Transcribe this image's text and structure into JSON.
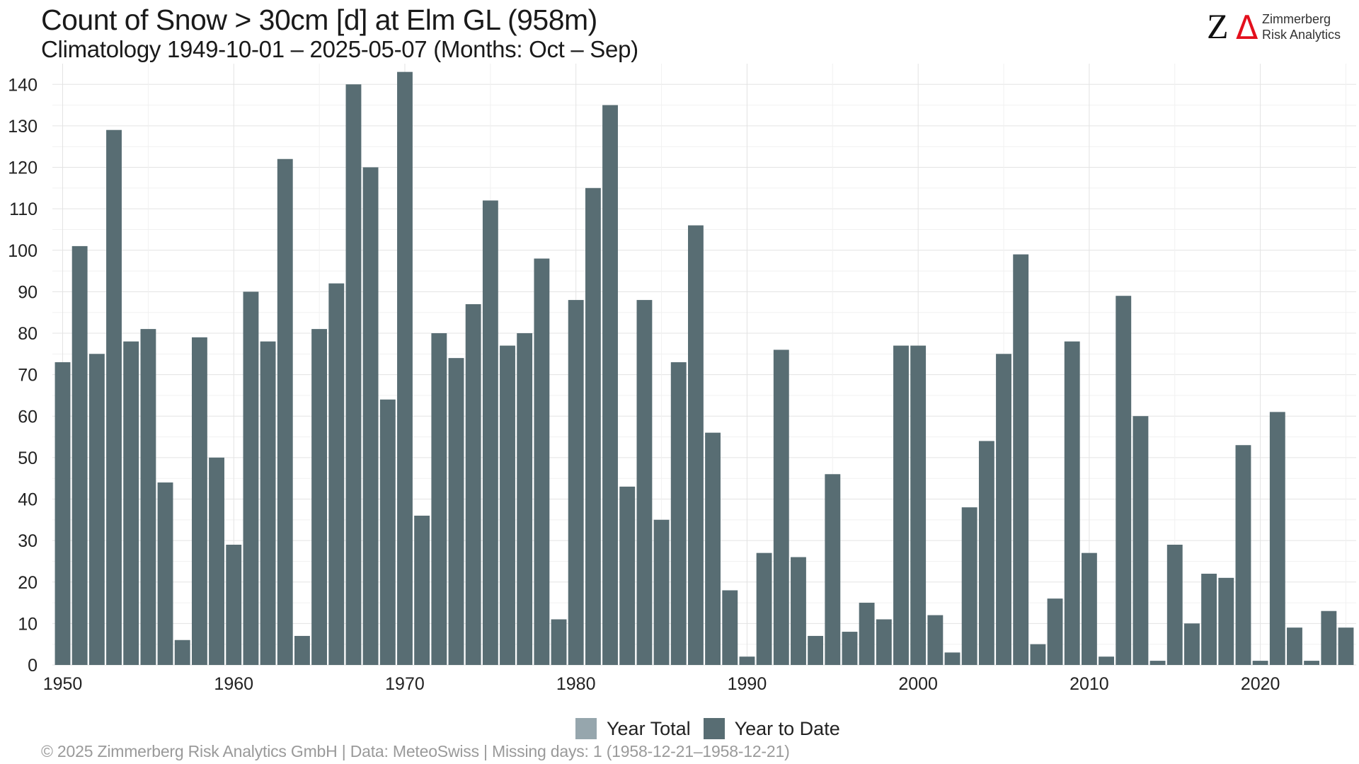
{
  "chart_data": {
    "type": "bar",
    "title": "Count of Snow > 30cm [d] at Elm  GL (958m)",
    "subtitle": "Climatology 1949-10-01 – 2025-05-07 (Months: Oct – Sep)",
    "xlabel": "",
    "ylabel": "",
    "x": [
      1950,
      1951,
      1952,
      1953,
      1954,
      1955,
      1956,
      1957,
      1958,
      1959,
      1960,
      1961,
      1962,
      1963,
      1964,
      1965,
      1966,
      1967,
      1968,
      1969,
      1970,
      1971,
      1972,
      1973,
      1974,
      1975,
      1976,
      1977,
      1978,
      1979,
      1980,
      1981,
      1982,
      1983,
      1984,
      1985,
      1986,
      1987,
      1988,
      1989,
      1990,
      1991,
      1992,
      1993,
      1994,
      1995,
      1996,
      1997,
      1998,
      1999,
      2000,
      2001,
      2002,
      2003,
      2004,
      2005,
      2006,
      2007,
      2008,
      2009,
      2010,
      2011,
      2012,
      2013,
      2014,
      2015,
      2016,
      2017,
      2018,
      2019,
      2020,
      2021,
      2022,
      2023,
      2024,
      2025
    ],
    "series": [
      {
        "name": "Year Total",
        "color": "#96a6ad",
        "values": [
          73,
          101,
          75,
          129,
          78,
          81,
          44,
          6,
          79,
          50,
          29,
          90,
          78,
          122,
          7,
          81,
          92,
          140,
          120,
          64,
          143,
          36,
          80,
          74,
          87,
          112,
          77,
          80,
          98,
          11,
          88,
          115,
          135,
          43,
          88,
          35,
          73,
          106,
          56,
          18,
          2,
          27,
          76,
          26,
          7,
          46,
          8,
          15,
          11,
          77,
          77,
          12,
          3,
          38,
          54,
          75,
          99,
          5,
          16,
          78,
          27,
          2,
          89,
          60,
          1,
          29,
          10,
          22,
          21,
          53,
          1,
          61,
          9,
          1,
          13,
          9
        ]
      },
      {
        "name": "Year to Date",
        "color": "#586d73",
        "values": [
          73,
          101,
          75,
          129,
          78,
          81,
          44,
          6,
          79,
          50,
          29,
          90,
          78,
          122,
          7,
          81,
          92,
          140,
          120,
          64,
          143,
          36,
          80,
          74,
          87,
          112,
          77,
          80,
          98,
          11,
          88,
          115,
          135,
          43,
          88,
          35,
          73,
          106,
          56,
          18,
          2,
          27,
          76,
          26,
          7,
          46,
          8,
          15,
          11,
          77,
          77,
          12,
          3,
          38,
          54,
          75,
          99,
          5,
          16,
          78,
          27,
          2,
          89,
          60,
          1,
          29,
          10,
          22,
          21,
          53,
          1,
          61,
          9,
          1,
          13,
          9
        ]
      }
    ],
    "ylim": [
      0,
      145
    ],
    "y_ticks": [
      0,
      10,
      20,
      30,
      40,
      50,
      60,
      70,
      80,
      90,
      100,
      110,
      120,
      130,
      140
    ],
    "x_ticks": [
      1950,
      1960,
      1970,
      1980,
      1990,
      2000,
      2010,
      2020
    ],
    "grid": true,
    "legend_position": "bottom"
  },
  "legend": {
    "year_total": "Year Total",
    "year_to_date": "Year to Date"
  },
  "logo": {
    "name_line1": "Zimmerberg",
    "name_line2": "Risk Analytics"
  },
  "footer": "©  2025 Zimmerberg Risk Analytics GmbH | Data: MeteoSwiss | Missing days: 1 (1958-12-21–1958-12-21)"
}
